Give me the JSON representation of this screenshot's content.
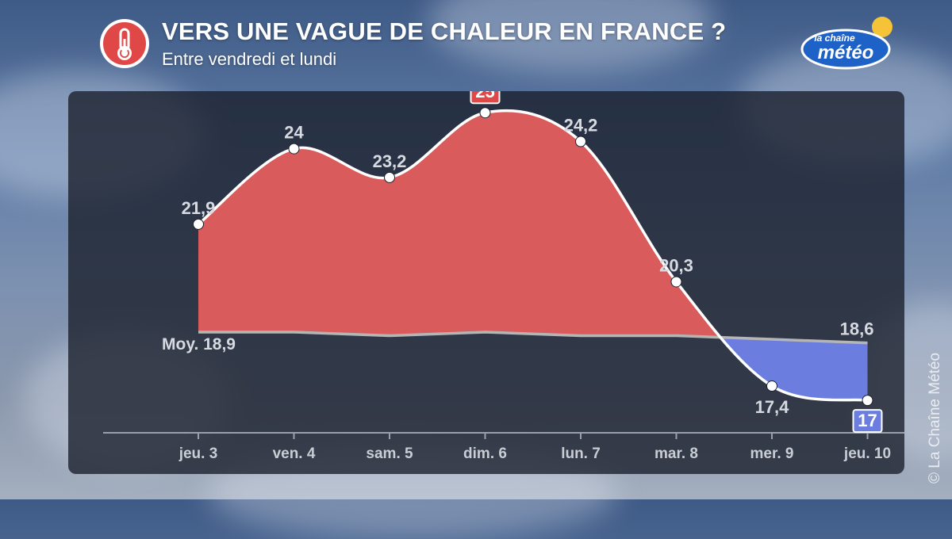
{
  "header": {
    "title": "VERS UNE VAGUE DE CHALEUR EN FRANCE ?",
    "subtitle": "Entre vendredi et lundi",
    "icon": "thermometer-icon"
  },
  "brand": {
    "logo_small": "la chaîne",
    "logo_large": "météo"
  },
  "copyright": "© La Chaîne Météo",
  "colors": {
    "above_normal": "#d95b5b",
    "below_normal": "#6b7ee0",
    "line": "#ffffff",
    "normal_line": "#b5b5b5",
    "accent_red": "#e04848"
  },
  "chart_data": {
    "type": "area",
    "categories": [
      "jeu. 3",
      "ven. 4",
      "sam. 5",
      "dim. 6",
      "lun. 7",
      "mar. 8",
      "mer. 9",
      "jeu. 10"
    ],
    "series": [
      {
        "values": [
          21.9,
          24,
          23.2,
          25,
          24.2,
          20.3,
          17.4,
          17
        ],
        "labels": [
          "21,9",
          "24",
          "23,2",
          "25",
          "24,2",
          "20,3",
          "17,4",
          "17"
        ],
        "highlight_max_label": "25",
        "highlight_min_label": "17"
      },
      {
        "values": [
          18.9,
          18.9,
          18.8,
          18.9,
          18.8,
          18.8,
          18.7,
          18.6
        ],
        "start_label": "Moy. 18,9",
        "end_label": "18,6"
      }
    ],
    "ylim": [
      16.1,
      25.6
    ],
    "grid": false
  }
}
